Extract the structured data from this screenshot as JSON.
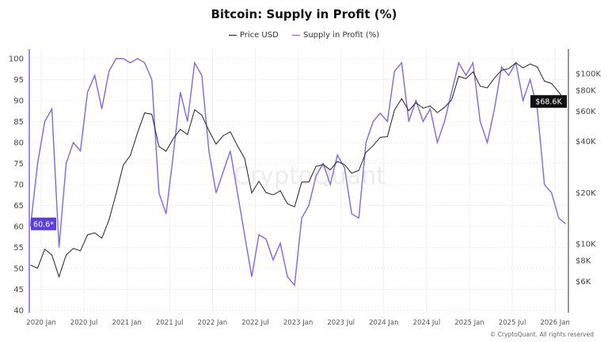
{
  "chart_data": {
    "type": "line",
    "title": "Bitcoin: Supply in Profit (%)",
    "legend": [
      "Price USD",
      "Supply in Profit (%)"
    ],
    "legend_placement": "top-center",
    "grid": true,
    "colors": {
      "price": "#222222",
      "supply": "#7b68ee",
      "accent": "#5b3fd8"
    },
    "x": [
      "2019-11",
      "2019-12",
      "2020-01",
      "2020-02",
      "2020-03",
      "2020-04",
      "2020-05",
      "2020-06",
      "2020-07",
      "2020-08",
      "2020-09",
      "2020-10",
      "2020-11",
      "2020-12",
      "2021-01",
      "2021-02",
      "2021-03",
      "2021-04",
      "2021-05",
      "2021-06",
      "2021-07",
      "2021-08",
      "2021-09",
      "2021-10",
      "2021-11",
      "2021-12",
      "2022-01",
      "2022-02",
      "2022-03",
      "2022-04",
      "2022-05",
      "2022-06",
      "2022-07",
      "2022-08",
      "2022-09",
      "2022-10",
      "2022-11",
      "2022-12",
      "2023-01",
      "2023-02",
      "2023-03",
      "2023-04",
      "2023-05",
      "2023-06",
      "2023-07",
      "2023-08",
      "2023-09",
      "2023-10",
      "2023-11",
      "2023-12",
      "2024-01",
      "2024-02",
      "2024-03",
      "2024-04",
      "2024-05",
      "2024-06",
      "2024-07",
      "2024-08",
      "2024-09",
      "2024-10",
      "2024-11",
      "2024-12",
      "2025-01",
      "2025-02",
      "2025-03",
      "2025-04",
      "2025-05",
      "2025-06",
      "2025-07",
      "2025-08",
      "2025-09",
      "2025-10",
      "2025-11",
      "2025-12",
      "2026-01",
      "2026-02"
    ],
    "series": [
      {
        "name": "Price USD",
        "axis": "right",
        "values": [
          7500,
          7200,
          9300,
          8600,
          6400,
          8600,
          9400,
          9100,
          11300,
          11600,
          10800,
          13800,
          19700,
          29000,
          33100,
          45000,
          58800,
          57700,
          37300,
          35000,
          41500,
          47100,
          43800,
          61300,
          57000,
          46300,
          38500,
          43200,
          45500,
          37700,
          31800,
          19900,
          23300,
          20000,
          19400,
          20500,
          17200,
          16500,
          23100,
          23100,
          28500,
          29200,
          27200,
          30500,
          29200,
          26000,
          27000,
          34500,
          37700,
          42300,
          42600,
          61200,
          71300,
          60600,
          67500,
          62700,
          64600,
          59000,
          63300,
          70200,
          96400,
          93400,
          102400,
          84400,
          82500,
          94200,
          104600,
          107100,
          115700,
          108200,
          114000,
          109500,
          90400,
          87500,
          78000,
          68600
        ]
      },
      {
        "name": "Supply in Profit (%)",
        "axis": "left",
        "values": [
          60,
          75,
          85,
          88,
          55,
          75,
          80,
          78,
          92,
          96,
          88,
          97,
          100,
          100,
          99,
          100,
          99,
          95,
          68,
          63,
          77,
          92,
          85,
          99,
          96,
          78,
          68,
          73,
          78,
          68,
          58,
          48,
          58,
          57,
          52,
          56,
          48,
          46,
          62,
          65,
          72,
          75,
          70,
          77,
          74,
          63,
          62,
          80,
          85,
          87,
          85,
          97,
          99,
          85,
          90,
          85,
          88,
          80,
          85,
          92,
          99,
          96,
          99,
          85,
          80,
          88,
          98,
          96,
          99,
          90,
          95,
          88,
          70,
          68,
          62,
          60.6
        ]
      }
    ],
    "y_left": {
      "ticks": [
        40,
        45,
        50,
        55,
        60,
        65,
        70,
        75,
        80,
        85,
        90,
        95,
        100
      ],
      "range": [
        40,
        100
      ]
    },
    "y_right": {
      "scale": "log",
      "ticks": [
        6000,
        8000,
        10000,
        20000,
        40000,
        60000,
        80000,
        100000
      ],
      "tick_labels": [
        "$6K",
        "$8K",
        "$10K",
        "$20K",
        "$40K",
        "$60K",
        "$80K",
        "$100K"
      ]
    },
    "x_ticks": [
      "2020 Jan",
      "2020 Jul",
      "2021 Jan",
      "2021 Jul",
      "2022 Jan",
      "2022 Jul",
      "2023 Jan",
      "2023 Jul",
      "2024 Jan",
      "2024 Jul",
      "2025 Jan",
      "2025 Jul",
      "2026 Jan"
    ],
    "last_value_left": "60.6*",
    "last_value_right": "$68.6K"
  },
  "watermark": "CryptoQuant",
  "copyright": "© CryptoQuant. All rights reserved"
}
